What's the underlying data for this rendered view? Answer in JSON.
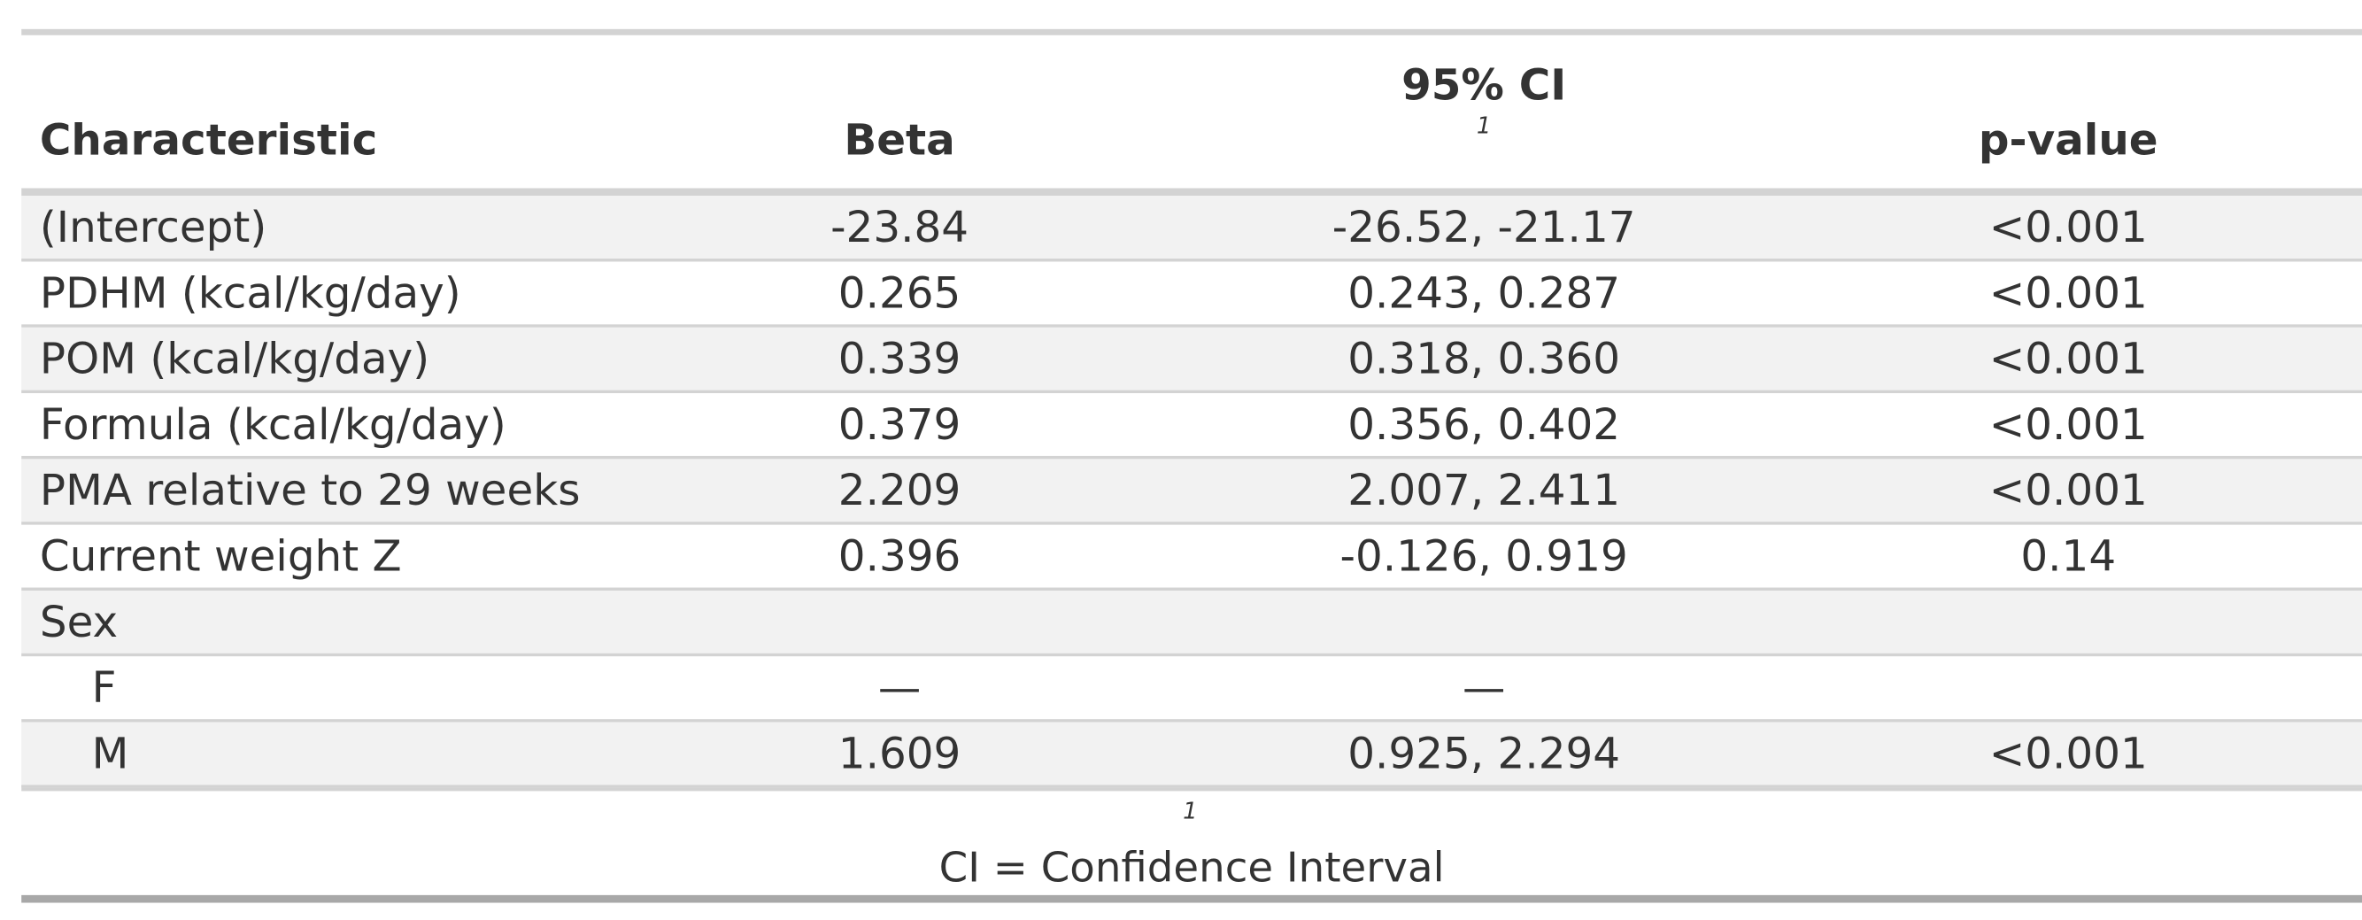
{
  "table": {
    "headers": {
      "characteristic": "Characteristic",
      "beta": "Beta",
      "ci": "95% CI",
      "ci_footnote_mark": "1",
      "p_value": "p-value"
    },
    "rows": [
      {
        "label": "(Intercept)",
        "beta": "-23.84",
        "ci": "-26.52, -21.17",
        "p": "<0.001",
        "indent": false
      },
      {
        "label": "PDHM (kcal/kg/day)",
        "beta": "0.265",
        "ci": "0.243, 0.287",
        "p": "<0.001",
        "indent": false
      },
      {
        "label": "POM (kcal/kg/day)",
        "beta": "0.339",
        "ci": "0.318, 0.360",
        "p": "<0.001",
        "indent": false
      },
      {
        "label": "Formula (kcal/kg/day)",
        "beta": "0.379",
        "ci": "0.356, 0.402",
        "p": "<0.001",
        "indent": false
      },
      {
        "label": "PMA relative to 29 weeks",
        "beta": "2.209",
        "ci": "2.007, 2.411",
        "p": "<0.001",
        "indent": false
      },
      {
        "label": "Current weight Z",
        "beta": "0.396",
        "ci": "-0.126, 0.919",
        "p": "0.14",
        "indent": false
      },
      {
        "label": "Sex",
        "beta": "",
        "ci": "",
        "p": "",
        "indent": false
      },
      {
        "label": "F",
        "beta": "—",
        "ci": "—",
        "p": "",
        "indent": true
      },
      {
        "label": "M",
        "beta": "1.609",
        "ci": "0.925, 2.294",
        "p": "<0.001",
        "indent": true
      }
    ],
    "footnote": {
      "mark": "1",
      "text": "CI = Confidence Interval"
    }
  }
}
